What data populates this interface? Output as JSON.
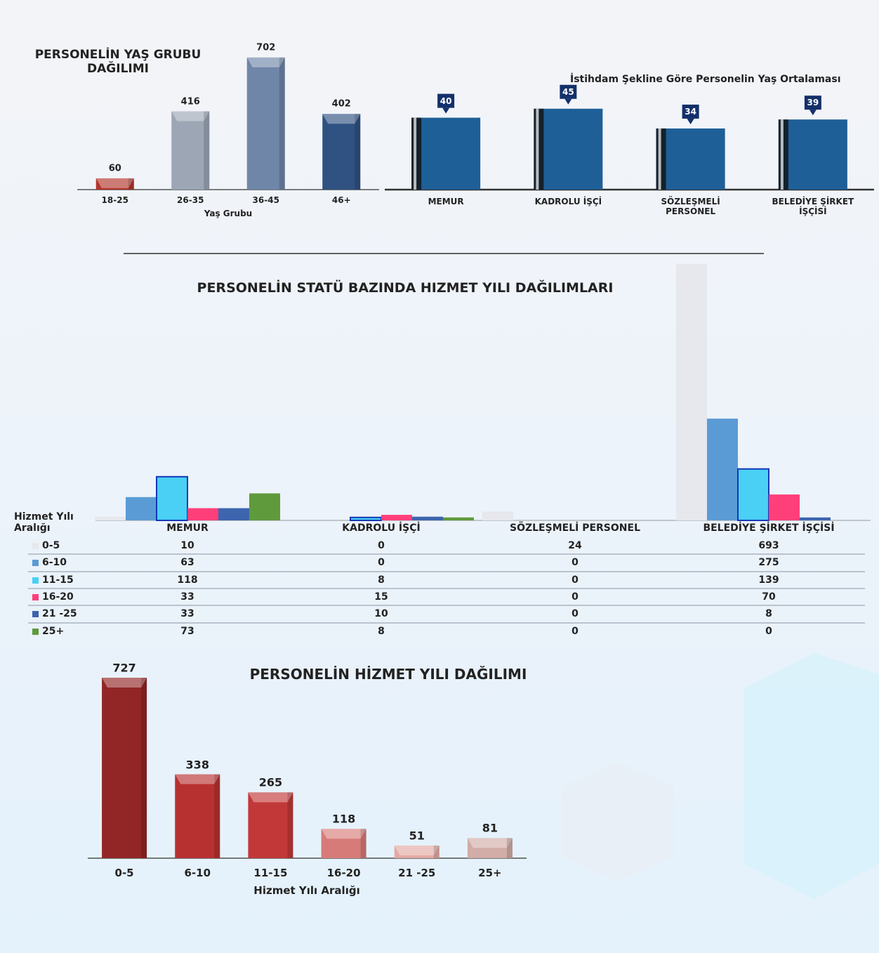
{
  "chart_data": [
    {
      "type": "bar",
      "title": "PERSONELİN YAŞ GRUBU DAĞILIMI",
      "x_label": "Yaş Grubu",
      "categories": [
        "18-25",
        "26-35",
        "36-45",
        "46+"
      ],
      "values": [
        60,
        416,
        702,
        402
      ],
      "colors": [
        "#b3352c",
        "#9ca6b4",
        "#6f86a8",
        "#2f5282"
      ]
    },
    {
      "type": "bar",
      "title": "İstihdam Şekline Göre Personelin Yaş Ortalaması",
      "categories": [
        "MEMUR",
        "KADROLU İŞÇİ",
        "SÖZLEŞMELİ PERSONEL",
        "BELEDİYE ŞİRKET İŞÇİSİ"
      ],
      "values": [
        40,
        45,
        34,
        39
      ],
      "color": "#1f5f98"
    },
    {
      "type": "grouped_bar",
      "title": "PERSONELİN  STATÜ BAZINDA HIZMET YILI DAĞILIMLARI",
      "legend_title": "Hizmet Yılı Aralığı",
      "categories": [
        "MEMUR",
        "KADROLU İŞÇİ",
        "SÖZLEŞMELİ PERSONEL",
        "BELEDİYE ŞİRKET İŞÇİSİ"
      ],
      "series": [
        {
          "name": "0-5",
          "color": "#e6e8ee",
          "values": [
            10,
            0,
            24,
            693
          ]
        },
        {
          "name": "6-10",
          "color": "#5b9bd5",
          "values": [
            63,
            0,
            0,
            275
          ]
        },
        {
          "name": "11-15",
          "color": "#49d0f4",
          "values": [
            118,
            8,
            0,
            139
          ]
        },
        {
          "name": "16-20",
          "color": "#ff3f7a",
          "values": [
            33,
            15,
            0,
            70
          ]
        },
        {
          "name": "21 -25",
          "color": "#3d65ae",
          "values": [
            33,
            10,
            0,
            8
          ]
        },
        {
          "name": "25+",
          "color": "#5f9a3c",
          "values": [
            73,
            8,
            0,
            0
          ]
        }
      ]
    },
    {
      "type": "bar",
      "title": "PERSONELİN HİZMET YILI DAĞILIMI",
      "x_label": "Hizmet Yılı Aralığı",
      "categories": [
        "0-5",
        "6-10",
        "11-15",
        "16-20",
        "21 -25",
        "25+"
      ],
      "values": [
        727,
        338,
        265,
        118,
        51,
        81
      ],
      "colors": [
        "#922626",
        "#b83131",
        "#c23838",
        "#d77b78",
        "#e3aaa3",
        "#d2aca6"
      ]
    }
  ]
}
